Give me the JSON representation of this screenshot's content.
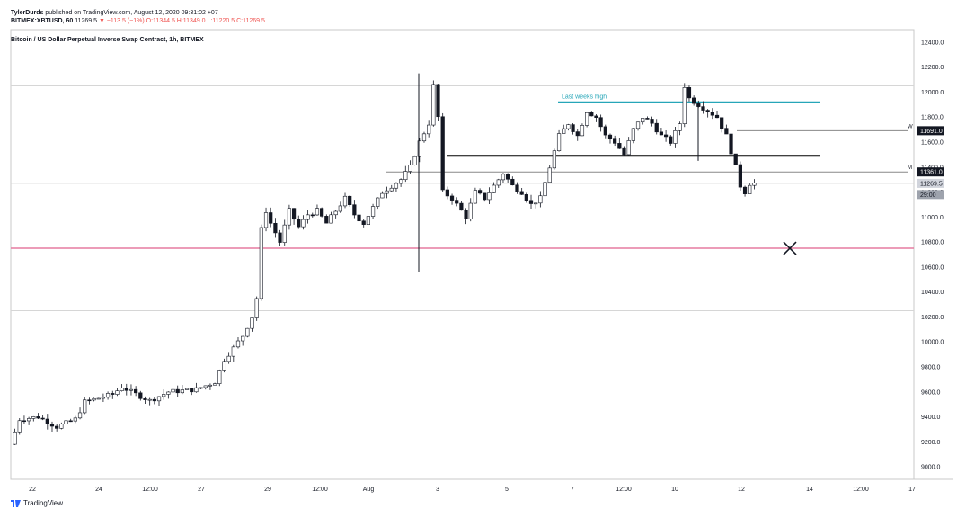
{
  "header": {
    "author": "TylerDurds",
    "published_text": "published on TradingView.com, August 12, 2020 09:31:02 +07",
    "symbol_line": "BITMEX:XBTUSD, 60",
    "last": "11269.5",
    "change": "▼ −113.5 (−1%)",
    "ohlc": "O:11344.5 H:11349.0 L:11220.5 C:11269.5",
    "chart_title": "Bitcoin / US Dollar Perpetual Inverse Swap Contract, 1h, BITMEX"
  },
  "branding": {
    "label": "TradingView",
    "icon": "tradingview-logo-icon"
  },
  "colors": {
    "up": "#131722",
    "down": "#131722",
    "teal": "#26a6b8",
    "pink": "#e57ba0",
    "black_line": "#000000",
    "grid": "#e5e5e5"
  },
  "chart_data": {
    "type": "candlestick",
    "title": "Bitcoin / US Dollar Perpetual Inverse Swap Contract, 1h, BITMEX",
    "x_ticks": [
      "22",
      "24",
      "12:00",
      "27",
      "29",
      "12:00",
      "Aug",
      "3",
      "5",
      "7",
      "12:00",
      "10",
      "12",
      "14",
      "12:00",
      "17"
    ],
    "y_ticks": [
      9000.0,
      9200.0,
      9400.0,
      9600.0,
      9800.0,
      10000.0,
      10200.0,
      10400.0,
      10600.0,
      10800.0,
      11000.0,
      11200.0,
      11400.0,
      11600.0,
      11800.0,
      12000.0,
      12200.0,
      12400.0
    ],
    "y_tick_labels": [
      "9000.0",
      "9200.0",
      "9400.0",
      "9600.0",
      "9800.0",
      "10000.0",
      "10200.0",
      "10400.0",
      "10600.0",
      "10800.0",
      "11000.0",
      "11200.0",
      "11400.0",
      "11600.0",
      "11800.0",
      "12000.0",
      "12200.0",
      "12400.0"
    ],
    "ylim": [
      8900,
      12500
    ],
    "price_path": [
      [
        0,
        9180
      ],
      [
        2,
        9380
      ],
      [
        6,
        9400
      ],
      [
        10,
        9320
      ],
      [
        14,
        9380
      ],
      [
        16,
        9520
      ],
      [
        22,
        9580
      ],
      [
        24,
        9640
      ],
      [
        26,
        9600
      ],
      [
        30,
        9530
      ],
      [
        34,
        9600
      ],
      [
        40,
        9620
      ],
      [
        44,
        9680
      ],
      [
        46,
        9860
      ],
      [
        48,
        9950
      ],
      [
        50,
        10050
      ],
      [
        52,
        10200
      ],
      [
        53,
        10350
      ],
      [
        54,
        10900
      ],
      [
        55,
        11050
      ],
      [
        56,
        10950
      ],
      [
        58,
        10800
      ],
      [
        60,
        11050
      ],
      [
        62,
        10920
      ],
      [
        64,
        11020
      ],
      [
        66,
        11050
      ],
      [
        68,
        10950
      ],
      [
        72,
        11150
      ],
      [
        74,
        11020
      ],
      [
        76,
        10950
      ],
      [
        80,
        11200
      ],
      [
        84,
        11300
      ],
      [
        86,
        11400
      ],
      [
        88,
        11600
      ],
      [
        90,
        11750
      ],
      [
        91,
        12050
      ],
      [
        92,
        11800
      ],
      [
        93,
        11200
      ],
      [
        95,
        11150
      ],
      [
        98,
        11000
      ],
      [
        100,
        11200
      ],
      [
        102,
        11150
      ],
      [
        106,
        11350
      ],
      [
        108,
        11250
      ],
      [
        110,
        11200
      ],
      [
        112,
        11100
      ],
      [
        114,
        11150
      ],
      [
        116,
        11400
      ],
      [
        118,
        11650
      ],
      [
        120,
        11750
      ],
      [
        122,
        11650
      ],
      [
        124,
        11850
      ],
      [
        126,
        11800
      ],
      [
        128,
        11650
      ],
      [
        130,
        11600
      ],
      [
        132,
        11500
      ],
      [
        134,
        11700
      ],
      [
        136,
        11800
      ],
      [
        138,
        11750
      ],
      [
        140,
        11650
      ],
      [
        142,
        11600
      ],
      [
        144,
        11750
      ],
      [
        145,
        12050
      ],
      [
        146,
        11950
      ],
      [
        148,
        11900
      ],
      [
        150,
        11850
      ],
      [
        152,
        11800
      ],
      [
        154,
        11650
      ],
      [
        156,
        11400
      ],
      [
        157,
        11250
      ],
      [
        158,
        11200
      ],
      [
        159,
        11269.5
      ]
    ],
    "price_range": [
      9100,
      12200
    ],
    "horizontal_lines": [
      {
        "price": 10750,
        "color": "#e57ba0",
        "label": ""
      },
      {
        "price": 11920,
        "color": "#26a6b8",
        "label": "Last weeks high"
      },
      {
        "price": 11490,
        "color": "#000000",
        "label": ""
      },
      {
        "price": 11691.0,
        "color": "#000000",
        "label": "W"
      },
      {
        "price": 11361.0,
        "color": "#000000",
        "label": "M"
      }
    ],
    "price_labels": [
      {
        "price": 11691.0,
        "text": "11691.0"
      },
      {
        "price": 11361.0,
        "text": "11361.0"
      },
      {
        "price": 11269.5,
        "text": "11269.5"
      },
      {
        "price": 11180,
        "text": "29:00"
      }
    ],
    "annotations": [
      {
        "type": "x-mark",
        "price": 10750
      }
    ],
    "grid_prices": [
      12050,
      11269.5,
      10250
    ]
  }
}
